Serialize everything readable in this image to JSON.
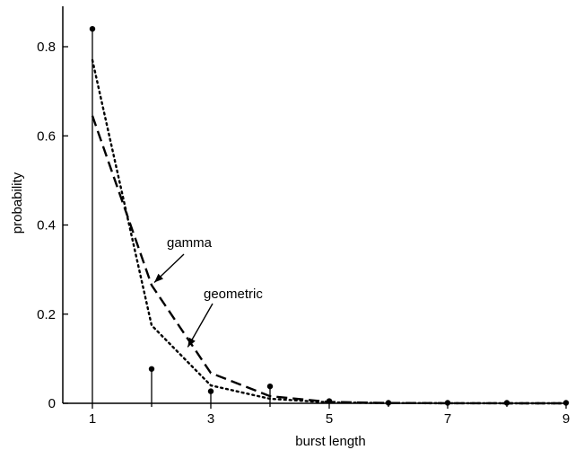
{
  "chart_data": {
    "type": "line",
    "xlabel": "burst length",
    "ylabel": "probability",
    "xlim": [
      0.5,
      9
    ],
    "ylim": [
      0,
      0.88
    ],
    "x_ticks": [
      1,
      3,
      5,
      7,
      9
    ],
    "x_minor_ticks": [
      2,
      4,
      6,
      8
    ],
    "y_ticks": [
      0,
      0.2,
      0.4,
      0.6,
      0.8
    ],
    "y_tick_labels": [
      "0",
      "0.2",
      "0.4",
      "0.6",
      "0.8"
    ],
    "x_tick_labels": [
      "1",
      "3",
      "5",
      "7",
      "9"
    ],
    "empirical": {
      "x": [
        1,
        2,
        3,
        4,
        5,
        6,
        7,
        8,
        9
      ],
      "y": [
        0.84,
        0.077,
        0.027,
        0.038,
        0.005,
        0.001,
        0.001,
        0.001,
        0.001
      ]
    },
    "series": [
      {
        "name": "geometric",
        "style": "dotted",
        "x": [
          1,
          2,
          3,
          4,
          5,
          6,
          7,
          8,
          9
        ],
        "y": [
          0.77,
          0.175,
          0.04,
          0.01,
          0.002,
          0.0005,
          0.0002,
          0.0001,
          0.0001
        ]
      },
      {
        "name": "gamma",
        "style": "dashed",
        "x": [
          1,
          2,
          3,
          4,
          5,
          6,
          7,
          8,
          9
        ],
        "y": [
          0.645,
          0.265,
          0.068,
          0.016,
          0.003,
          0.0007,
          0.0002,
          0.0001,
          0.0001
        ]
      }
    ],
    "annotations": [
      {
        "text": "gamma",
        "series": "gamma",
        "arrow_to": [
          2.0,
          0.265
        ]
      },
      {
        "text": "geometric",
        "series": "geometric",
        "arrow_to": [
          2.55,
          0.12
        ]
      }
    ]
  }
}
